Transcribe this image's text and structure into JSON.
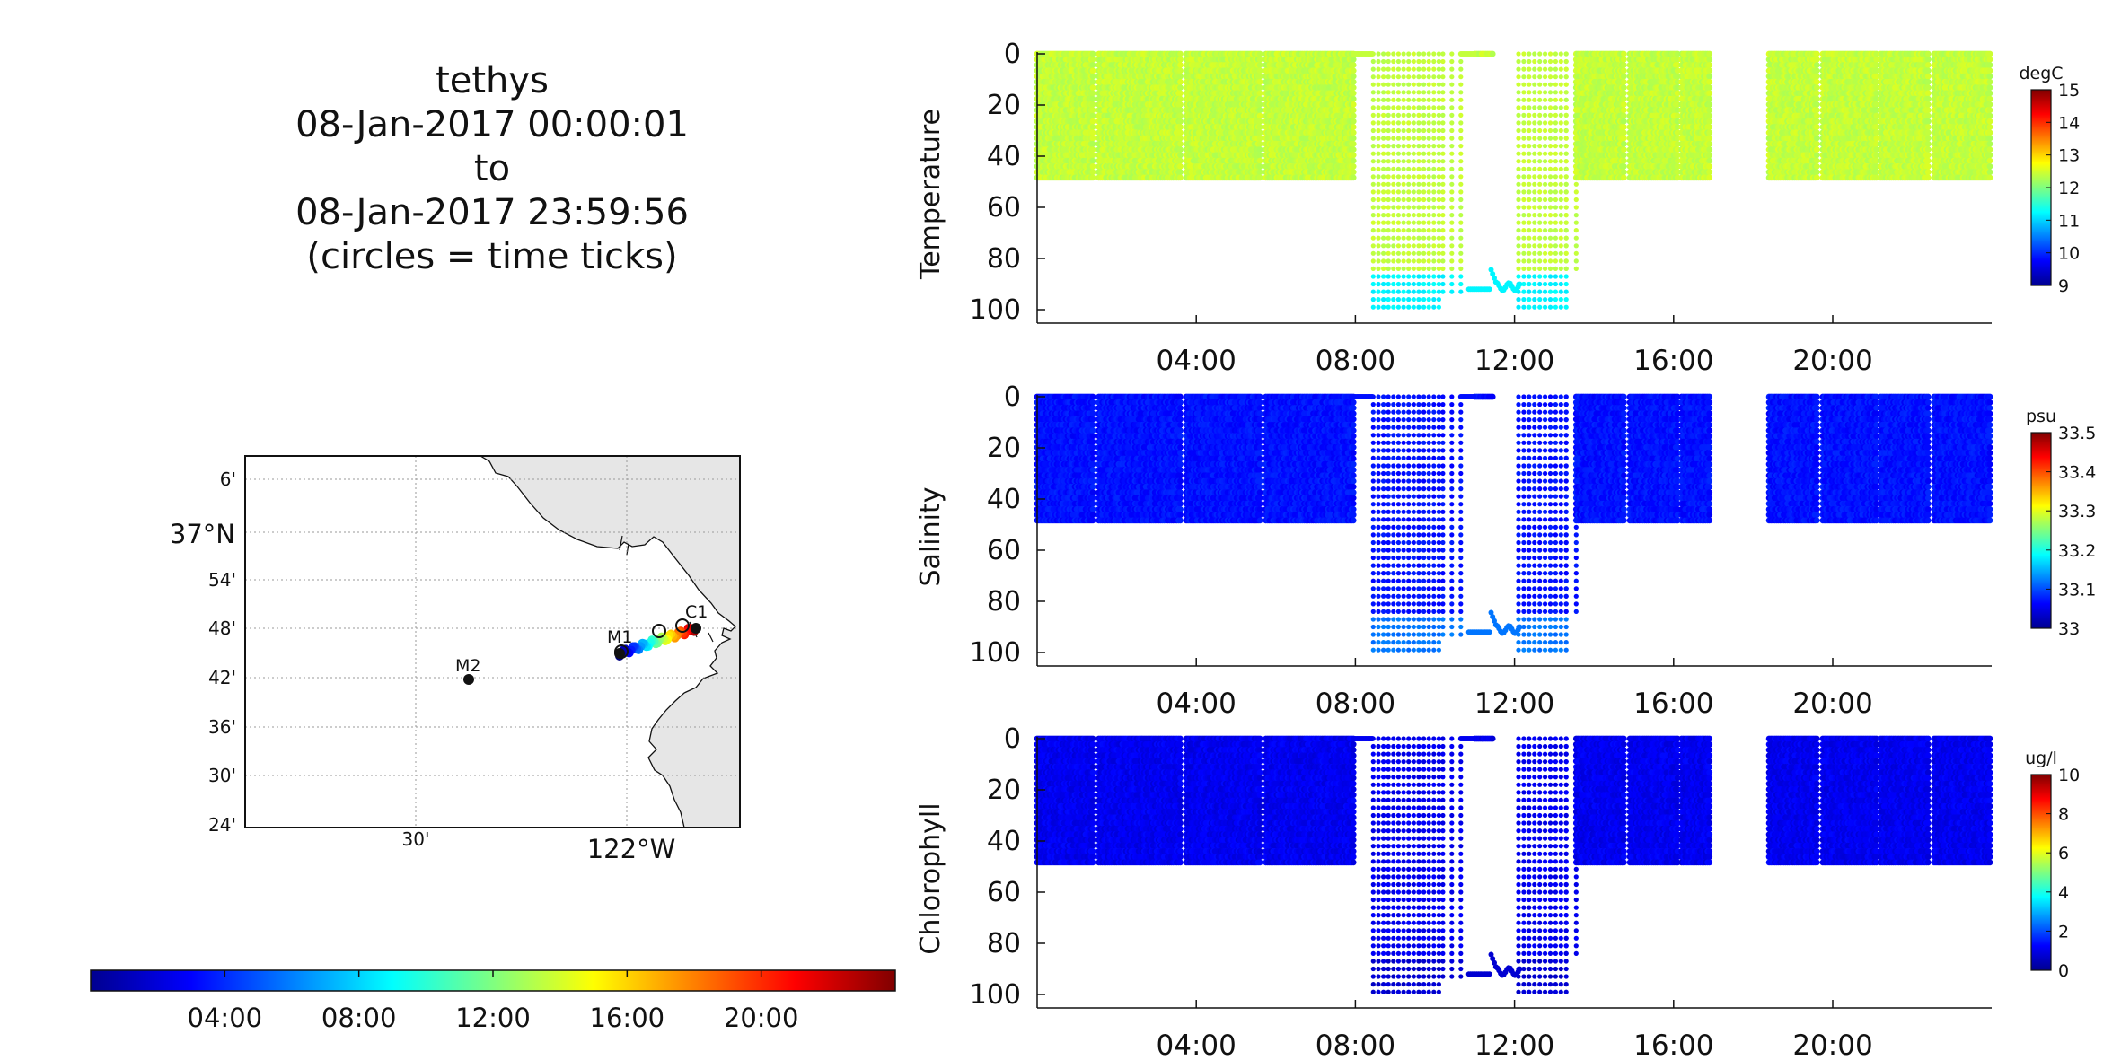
{
  "header": {
    "vehicle": "tethys",
    "start": "08-Jan-2017 00:00:01",
    "to": "to",
    "end": "08-Jan-2017 23:59:56",
    "note": "(circles = time ticks)"
  },
  "map": {
    "lat_labels": [
      "6'",
      "37°N",
      "54'",
      "48'",
      "42'",
      "36'",
      "30'",
      "24'"
    ],
    "lon_labels": [
      "30'",
      "122°W"
    ],
    "stations": [
      {
        "name": "M2",
        "lat": 36.697,
        "lon": -122.39
      },
      {
        "name": "M1",
        "lat": 36.75,
        "lon": -122.03
      },
      {
        "name": "C1",
        "lat": 36.797,
        "lon": -121.847
      }
    ],
    "land_color": "#e6e6e6"
  },
  "time_colorbar": {
    "ticks": [
      "04:00",
      "08:00",
      "12:00",
      "16:00",
      "20:00"
    ]
  },
  "chart_data": [
    {
      "type": "scatter",
      "ylabel": "Temperature",
      "units": "degC",
      "x_ticks": [
        "04:00",
        "08:00",
        "12:00",
        "16:00",
        "20:00"
      ],
      "y_ticks": [
        0,
        20,
        40,
        60,
        80,
        100
      ],
      "ylim": [
        100,
        0
      ],
      "color_range": [
        9,
        15
      ],
      "colorbar_ticks": [
        "9",
        "10",
        "11",
        "12",
        "13",
        "14",
        "15"
      ],
      "shallow_value": 12.4,
      "deep_value": 11.2
    },
    {
      "type": "scatter",
      "ylabel": "Salinity",
      "units": "psu",
      "x_ticks": [
        "04:00",
        "08:00",
        "12:00",
        "16:00",
        "20:00"
      ],
      "y_ticks": [
        0,
        20,
        40,
        60,
        80,
        100
      ],
      "ylim": [
        100,
        0
      ],
      "color_range": [
        33,
        33.5
      ],
      "colorbar_ticks": [
        "33",
        "33.1",
        "33.2",
        "33.3",
        "33.4",
        "33.5"
      ],
      "shallow_value": 33.07,
      "deep_value": 33.12
    },
    {
      "type": "scatter",
      "ylabel": "Chlorophyll",
      "units": "ug/l",
      "x_ticks": [
        "04:00",
        "08:00",
        "12:00",
        "16:00",
        "20:00"
      ],
      "y_ticks": [
        0,
        20,
        40,
        60,
        80,
        100
      ],
      "ylim": [
        100,
        0
      ],
      "color_range": [
        0,
        10
      ],
      "colorbar_ticks": [
        "0",
        "2",
        "4",
        "6",
        "8",
        "10"
      ],
      "shallow_value": 1.1,
      "deep_value": 0.8
    }
  ]
}
